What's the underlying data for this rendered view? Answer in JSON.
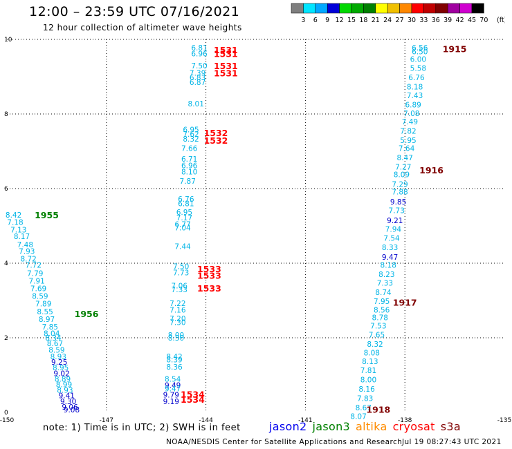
{
  "title": "12:00 – 23:59 UTC 07/16/2021",
  "subtitle": "12 hour collection of altimeter wave heights",
  "colorbar": {
    "labels": [
      "3",
      "6",
      "9",
      "12",
      "15",
      "18",
      "21",
      "24",
      "27",
      "30",
      "33",
      "36",
      "39",
      "42",
      "45",
      "70"
    ],
    "unit": "(ft)",
    "colors": [
      "#7f7f7f",
      "#00e5ff",
      "#00a8ff",
      "#0000d8",
      "#00d800",
      "#00aa00",
      "#008000",
      "#ffff00",
      "#f0c000",
      "#ff8800",
      "#ff0000",
      "#c00000",
      "#800000",
      "#a000a0",
      "#d000d0",
      "#000000"
    ]
  },
  "note": "note: 1) Time is in UTC; 2) SWH is in feet",
  "legend": [
    {
      "name": "jason2",
      "color": "#0000ee"
    },
    {
      "name": "jason3",
      "color": "#008000"
    },
    {
      "name": "altika",
      "color": "#ff8c00"
    },
    {
      "name": "cryosat",
      "color": "#ff0000"
    },
    {
      "name": "s3a",
      "color": "#800000"
    }
  ],
  "credit": "NOAA/NESDIS Center for Satellite Applications and Research",
  "timestamp": "Jul 19 08:27:43 UTC 2021",
  "chart_data": {
    "type": "scatter",
    "xlim": [
      -150,
      -135
    ],
    "ylim": [
      0,
      10
    ],
    "xticks": [
      "-150",
      "-147",
      "-144",
      "-141",
      "-138",
      "-135"
    ],
    "yticks": [
      "0",
      "2",
      "4",
      "6",
      "8",
      "10"
    ],
    "grid": true,
    "colors": {
      "light": "#00b4e6",
      "dark": "#0000cc",
      "cryosat": "#ff0000",
      "s3a": "#800000",
      "jason3": "#008000"
    },
    "time_labels": [
      {
        "text": "1955",
        "x": -148.8,
        "y": 5.3,
        "c": "jason3"
      },
      {
        "text": "1956",
        "x": -147.6,
        "y": 2.65,
        "c": "jason3"
      },
      {
        "text": "1531",
        "x": -143.4,
        "y": 9.72,
        "c": "cryosat"
      },
      {
        "text": "1531",
        "x": -143.4,
        "y": 9.62,
        "c": "cryosat"
      },
      {
        "text": "1531",
        "x": -143.4,
        "y": 9.3,
        "c": "cryosat"
      },
      {
        "text": "1531",
        "x": -143.4,
        "y": 9.1,
        "c": "cryosat"
      },
      {
        "text": "1532",
        "x": -143.7,
        "y": 7.5,
        "c": "cryosat"
      },
      {
        "text": "1532",
        "x": -143.7,
        "y": 7.3,
        "c": "cryosat"
      },
      {
        "text": "1533",
        "x": -143.9,
        "y": 3.85,
        "c": "cryosat"
      },
      {
        "text": "1533",
        "x": -143.9,
        "y": 3.68,
        "c": "cryosat"
      },
      {
        "text": "1533",
        "x": -143.9,
        "y": 3.33,
        "c": "cryosat"
      },
      {
        "text": "1534",
        "x": -144.4,
        "y": 0.49,
        "c": "cryosat"
      },
      {
        "text": "1534",
        "x": -144.4,
        "y": 0.35,
        "c": "cryosat"
      },
      {
        "text": "1915",
        "x": -136.5,
        "y": 9.75,
        "c": "s3a"
      },
      {
        "text": "1916",
        "x": -137.2,
        "y": 6.5,
        "c": "s3a"
      },
      {
        "text": "1917",
        "x": -138.0,
        "y": 2.95,
        "c": "s3a"
      },
      {
        "text": "1918",
        "x": -138.8,
        "y": 0.08,
        "c": "s3a"
      }
    ],
    "series": [
      {
        "points": [
          {
            "x": -149.8,
            "y": 5.3,
            "v": "8.42",
            "c": "light"
          },
          {
            "x": -149.75,
            "y": 5.1,
            "v": "7.18",
            "c": "light"
          },
          {
            "x": -149.65,
            "y": 4.9,
            "v": "7.13",
            "c": "light"
          },
          {
            "x": -149.55,
            "y": 4.72,
            "v": "8.17",
            "c": "light"
          },
          {
            "x": -149.45,
            "y": 4.5,
            "v": "7.48",
            "c": "light"
          },
          {
            "x": -149.4,
            "y": 4.32,
            "v": "7.93",
            "c": "light"
          },
          {
            "x": -149.35,
            "y": 4.12,
            "v": "8.72",
            "c": "light"
          },
          {
            "x": -149.2,
            "y": 3.95,
            "v": "7.72",
            "c": "light"
          },
          {
            "x": -149.15,
            "y": 3.73,
            "v": "7.79",
            "c": "light"
          },
          {
            "x": -149.1,
            "y": 3.53,
            "v": "7.91",
            "c": "light"
          },
          {
            "x": -149.05,
            "y": 3.32,
            "v": "7.69",
            "c": "light"
          },
          {
            "x": -149.0,
            "y": 3.12,
            "v": "8.59",
            "c": "light"
          },
          {
            "x": -148.9,
            "y": 2.92,
            "v": "7.89",
            "c": "light"
          },
          {
            "x": -148.85,
            "y": 2.7,
            "v": "8.55",
            "c": "light"
          },
          {
            "x": -148.8,
            "y": 2.5,
            "v": "8.97",
            "c": "light"
          },
          {
            "x": -148.7,
            "y": 2.3,
            "v": "7.85",
            "c": "light"
          },
          {
            "x": -148.65,
            "y": 2.12,
            "v": "8.04",
            "c": "light"
          },
          {
            "x": -148.6,
            "y": 2.0,
            "v": "8.34",
            "c": "light"
          },
          {
            "x": -148.55,
            "y": 1.85,
            "v": "8.67",
            "c": "light"
          },
          {
            "x": -148.5,
            "y": 1.68,
            "v": "8.59",
            "c": "light"
          },
          {
            "x": -148.45,
            "y": 1.5,
            "v": "8.93",
            "c": "light"
          },
          {
            "x": -148.42,
            "y": 1.35,
            "v": "9.25",
            "c": "dark"
          },
          {
            "x": -148.38,
            "y": 1.2,
            "v": "8.95",
            "c": "light"
          },
          {
            "x": -148.35,
            "y": 1.05,
            "v": "9.02",
            "c": "dark"
          },
          {
            "x": -148.32,
            "y": 0.9,
            "v": "8.89",
            "c": "light"
          },
          {
            "x": -148.28,
            "y": 0.75,
            "v": "8.99",
            "c": "light"
          },
          {
            "x": -148.25,
            "y": 0.6,
            "v": "8.93",
            "c": "light"
          },
          {
            "x": -148.2,
            "y": 0.45,
            "v": "9.41",
            "c": "dark"
          },
          {
            "x": -148.15,
            "y": 0.3,
            "v": "9.30",
            "c": "dark"
          },
          {
            "x": -148.1,
            "y": 0.15,
            "v": "9.06",
            "c": "dark"
          },
          {
            "x": -148.05,
            "y": 0.07,
            "v": "9.08",
            "c": "dark"
          }
        ]
      },
      {
        "points": [
          {
            "x": -144.2,
            "y": 9.78,
            "v": "6.81",
            "c": "light"
          },
          {
            "x": -144.2,
            "y": 9.62,
            "v": "6.96",
            "c": "light"
          },
          {
            "x": -144.2,
            "y": 9.3,
            "v": "7.50",
            "c": "light"
          },
          {
            "x": -144.25,
            "y": 9.1,
            "v": "7.39",
            "c": "light"
          },
          {
            "x": -144.25,
            "y": 8.98,
            "v": "6.83",
            "c": "light"
          },
          {
            "x": -144.25,
            "y": 8.85,
            "v": "6.87",
            "c": "light"
          },
          {
            "x": -144.3,
            "y": 8.28,
            "v": "8.01",
            "c": "light"
          },
          {
            "x": -144.45,
            "y": 7.58,
            "v": "6.95",
            "c": "light"
          },
          {
            "x": -144.45,
            "y": 7.46,
            "v": "7.62",
            "c": "light"
          },
          {
            "x": -144.45,
            "y": 7.33,
            "v": "8.32",
            "c": "light"
          },
          {
            "x": -144.5,
            "y": 7.08,
            "v": "7.66",
            "c": "light"
          },
          {
            "x": -144.5,
            "y": 6.8,
            "v": "6.71",
            "c": "light"
          },
          {
            "x": -144.5,
            "y": 6.62,
            "v": "6.96",
            "c": "light"
          },
          {
            "x": -144.5,
            "y": 6.45,
            "v": "8.10",
            "c": "light"
          },
          {
            "x": -144.55,
            "y": 6.2,
            "v": "7.87",
            "c": "light"
          },
          {
            "x": -144.6,
            "y": 5.72,
            "v": "6.76",
            "c": "light"
          },
          {
            "x": -144.6,
            "y": 5.6,
            "v": "6.81",
            "c": "light"
          },
          {
            "x": -144.65,
            "y": 5.37,
            "v": "6.95",
            "c": "light"
          },
          {
            "x": -144.65,
            "y": 5.22,
            "v": "7.17",
            "c": "light"
          },
          {
            "x": -144.7,
            "y": 5.05,
            "v": "6.77",
            "c": "light"
          },
          {
            "x": -144.7,
            "y": 4.95,
            "v": "7.04",
            "c": "light"
          },
          {
            "x": -144.7,
            "y": 4.45,
            "v": "7.44",
            "c": "light"
          },
          {
            "x": -144.75,
            "y": 3.92,
            "v": "7.50",
            "c": "light"
          },
          {
            "x": -144.75,
            "y": 3.75,
            "v": "7.73",
            "c": "light"
          },
          {
            "x": -144.8,
            "y": 3.4,
            "v": "7.06",
            "c": "light"
          },
          {
            "x": -144.8,
            "y": 3.3,
            "v": "7.33",
            "c": "light"
          },
          {
            "x": -144.85,
            "y": 2.93,
            "v": "7.22",
            "c": "light"
          },
          {
            "x": -144.85,
            "y": 2.75,
            "v": "7.16",
            "c": "light"
          },
          {
            "x": -144.85,
            "y": 2.52,
            "v": "7.20",
            "c": "light"
          },
          {
            "x": -144.85,
            "y": 2.42,
            "v": "7.30",
            "c": "light"
          },
          {
            "x": -144.9,
            "y": 2.07,
            "v": "8.00",
            "c": "light"
          },
          {
            "x": -144.9,
            "y": 2.0,
            "v": "8.30",
            "c": "light"
          },
          {
            "x": -144.95,
            "y": 1.5,
            "v": "8.42",
            "c": "light"
          },
          {
            "x": -144.95,
            "y": 1.42,
            "v": "8.39",
            "c": "light"
          },
          {
            "x": -144.95,
            "y": 1.22,
            "v": "8.36",
            "c": "light"
          },
          {
            "x": -145.0,
            "y": 0.9,
            "v": "8.54",
            "c": "light"
          },
          {
            "x": -145.0,
            "y": 0.73,
            "v": "9.49",
            "c": "dark"
          },
          {
            "x": -145.0,
            "y": 0.64,
            "v": "9.47",
            "c": "light"
          },
          {
            "x": -145.05,
            "y": 0.47,
            "v": "9.79",
            "c": "dark"
          },
          {
            "x": -145.05,
            "y": 0.3,
            "v": "9.19",
            "c": "dark"
          }
        ]
      },
      {
        "points": [
          {
            "x": -137.55,
            "y": 9.78,
            "v": "6.56",
            "c": "light"
          },
          {
            "x": -137.55,
            "y": 9.68,
            "v": "6.50",
            "c": "light"
          },
          {
            "x": -137.6,
            "y": 9.47,
            "v": "6.00",
            "c": "light"
          },
          {
            "x": -137.6,
            "y": 9.23,
            "v": "5.58",
            "c": "light"
          },
          {
            "x": -137.65,
            "y": 8.98,
            "v": "6.76",
            "c": "light"
          },
          {
            "x": -137.7,
            "y": 8.73,
            "v": "8.18",
            "c": "light"
          },
          {
            "x": -137.7,
            "y": 8.5,
            "v": "7.43",
            "c": "light"
          },
          {
            "x": -137.75,
            "y": 8.25,
            "v": "6.89",
            "c": "light"
          },
          {
            "x": -137.8,
            "y": 8.02,
            "v": "7.08",
            "c": "light"
          },
          {
            "x": -137.85,
            "y": 7.8,
            "v": "7.49",
            "c": "light"
          },
          {
            "x": -137.9,
            "y": 7.55,
            "v": "7.82",
            "c": "light"
          },
          {
            "x": -137.9,
            "y": 7.3,
            "v": "5.95",
            "c": "light"
          },
          {
            "x": -137.95,
            "y": 7.08,
            "v": "7.64",
            "c": "light"
          },
          {
            "x": -138.0,
            "y": 6.83,
            "v": "8.47",
            "c": "light"
          },
          {
            "x": -138.05,
            "y": 6.58,
            "v": "7.27",
            "c": "light"
          },
          {
            "x": -138.1,
            "y": 6.38,
            "v": "8.09",
            "c": "light"
          },
          {
            "x": -138.15,
            "y": 6.12,
            "v": "7.29",
            "c": "light"
          },
          {
            "x": -138.15,
            "y": 5.92,
            "v": "7.88",
            "c": "light"
          },
          {
            "x": -138.2,
            "y": 5.65,
            "v": "9.85",
            "c": "dark"
          },
          {
            "x": -138.25,
            "y": 5.42,
            "v": "7.73",
            "c": "light"
          },
          {
            "x": -138.3,
            "y": 5.15,
            "v": "9.21",
            "c": "dark"
          },
          {
            "x": -138.35,
            "y": 4.92,
            "v": "7.94",
            "c": "light"
          },
          {
            "x": -138.4,
            "y": 4.68,
            "v": "7.54",
            "c": "light"
          },
          {
            "x": -138.45,
            "y": 4.43,
            "v": "8.33",
            "c": "light"
          },
          {
            "x": -138.45,
            "y": 4.17,
            "v": "9.47",
            "c": "dark"
          },
          {
            "x": -138.5,
            "y": 3.95,
            "v": "8.18",
            "c": "light"
          },
          {
            "x": -138.55,
            "y": 3.7,
            "v": "8.23",
            "c": "light"
          },
          {
            "x": -138.6,
            "y": 3.47,
            "v": "7.33",
            "c": "light"
          },
          {
            "x": -138.65,
            "y": 3.22,
            "v": "8.74",
            "c": "light"
          },
          {
            "x": -138.7,
            "y": 2.98,
            "v": "7.95",
            "c": "light"
          },
          {
            "x": -138.7,
            "y": 2.75,
            "v": "8.56",
            "c": "light"
          },
          {
            "x": -138.75,
            "y": 2.55,
            "v": "8.78",
            "c": "light"
          },
          {
            "x": -138.8,
            "y": 2.32,
            "v": "7.53",
            "c": "light"
          },
          {
            "x": -138.85,
            "y": 2.08,
            "v": "7.65",
            "c": "light"
          },
          {
            "x": -138.9,
            "y": 1.83,
            "v": "8.32",
            "c": "light"
          },
          {
            "x": -139.0,
            "y": 1.6,
            "v": "8.08",
            "c": "light"
          },
          {
            "x": -139.05,
            "y": 1.37,
            "v": "8.13",
            "c": "light"
          },
          {
            "x": -139.1,
            "y": 1.13,
            "v": "7.81",
            "c": "light"
          },
          {
            "x": -139.1,
            "y": 0.88,
            "v": "8.00",
            "c": "light"
          },
          {
            "x": -139.15,
            "y": 0.63,
            "v": "8.16",
            "c": "light"
          },
          {
            "x": -139.2,
            "y": 0.38,
            "v": "7.83",
            "c": "light"
          },
          {
            "x": -139.25,
            "y": 0.13,
            "v": "8.67",
            "c": "light"
          },
          {
            "x": -139.4,
            "y": -0.1,
            "v": "8.07",
            "c": "light"
          }
        ]
      }
    ]
  }
}
